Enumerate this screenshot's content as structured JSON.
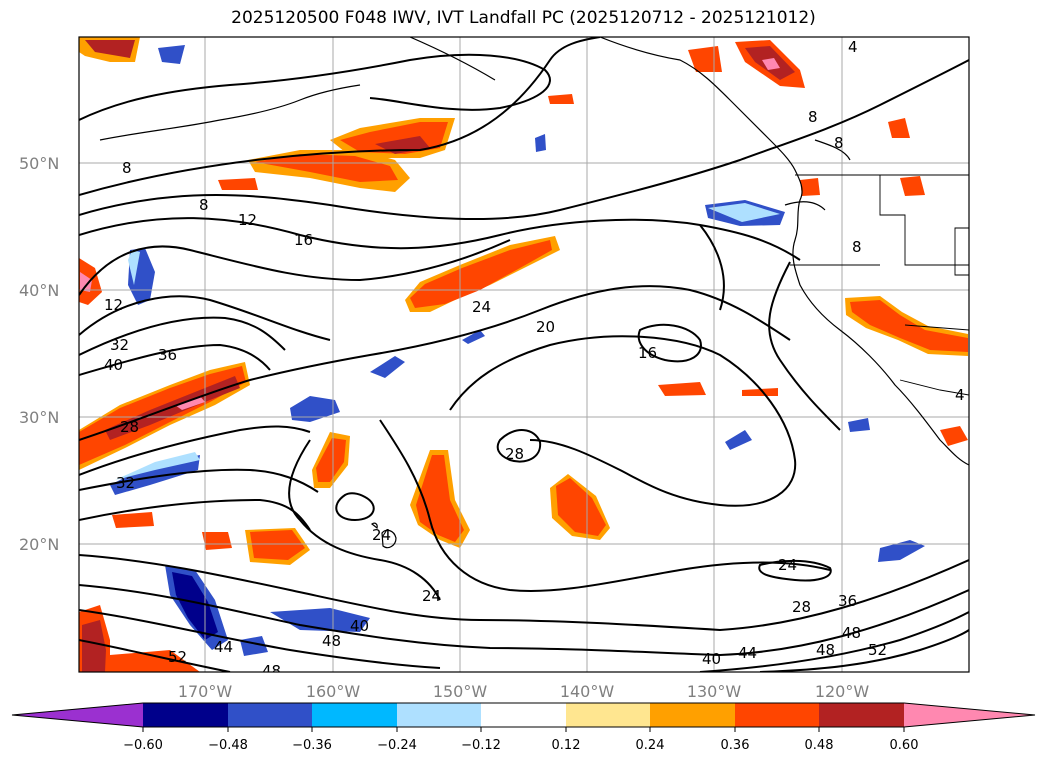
{
  "title": "2025120500 F048 IWV, IVT Landfall PC (2025120712 - 2025121012)",
  "lat_labels": [
    "50°N",
    "40°N",
    "30°N",
    "20°N"
  ],
  "lon_labels": [
    "170°W",
    "160°W",
    "150°W",
    "140°W",
    "130°W",
    "120°W"
  ],
  "contour_labels": [
    "8",
    "8",
    "12",
    "16",
    "12",
    "32",
    "40",
    "36",
    "28",
    "32",
    "24",
    "20",
    "16",
    "28",
    "24",
    "24",
    "28",
    "36",
    "40",
    "44",
    "48",
    "48",
    "52",
    "44",
    "48",
    "40",
    "52",
    "48",
    "4",
    "8",
    "8",
    "8",
    "4",
    "24"
  ],
  "colorbar": {
    "ticks": [
      "−0.60",
      "−0.48",
      "−0.36",
      "−0.24",
      "−0.12",
      "0.12",
      "0.24",
      "0.36",
      "0.48",
      "0.60"
    ],
    "colors": [
      "#9b30d0",
      "#00008b",
      "#3050c8",
      "#00b8ff",
      "#aee0ff",
      "#ffffff",
      "#ffe690",
      "#ffa000",
      "#ff4500",
      "#b22222",
      "#ff88b0"
    ]
  }
}
